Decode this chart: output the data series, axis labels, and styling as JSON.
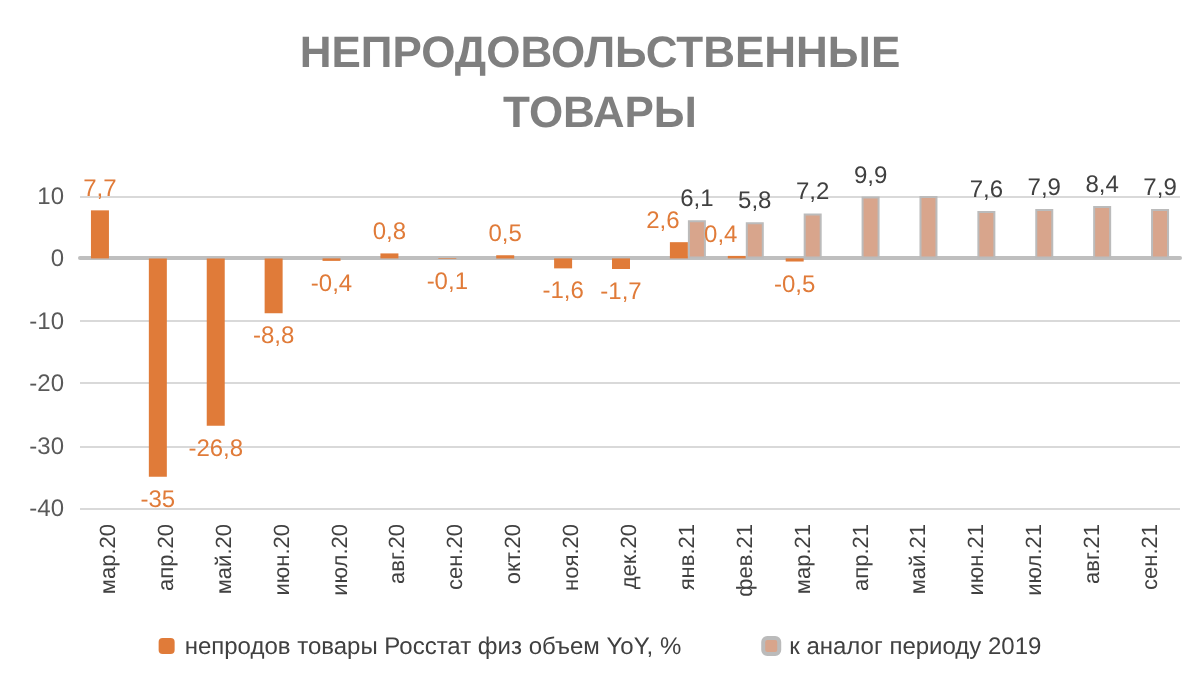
{
  "chart_data": {
    "type": "bar",
    "title": "НЕПРОДОВОЛЬСТВЕННЫЕ ТОВАРЫ",
    "categories": [
      "мар.20",
      "апр.20",
      "май.20",
      "июн.20",
      "июл.20",
      "авг.20",
      "сен.20",
      "окт.20",
      "ноя.20",
      "дек.20",
      "янв.21",
      "фев.21",
      "мар.21",
      "апр.21",
      "май.21",
      "июн.21",
      "июл.21",
      "авг.21",
      "сен.21"
    ],
    "series": [
      {
        "name": "непродов товары Росстат физ объем YoY, %",
        "color": "#e07b39",
        "values": [
          7.7,
          -35,
          -26.8,
          -8.8,
          -0.4,
          0.8,
          -0.1,
          0.5,
          -1.6,
          -1.7,
          2.6,
          0.4,
          -0.5,
          null,
          null,
          null,
          null,
          null,
          null
        ],
        "value_labels": [
          "7,7",
          "-35",
          "-26,8",
          "-8,8",
          "-0,4",
          "0,8",
          "-0,1",
          "0,5",
          "-1,6",
          "-1,7",
          "2,6",
          "0,4",
          "-0,5",
          null,
          null,
          null,
          null,
          null,
          null
        ]
      },
      {
        "name": "к аналог периоду 2019",
        "color": "#d8a58c",
        "values": [
          null,
          null,
          null,
          null,
          null,
          null,
          null,
          null,
          null,
          null,
          6.1,
          5.8,
          7.2,
          9.9,
          10,
          7.6,
          7.9,
          8.4,
          7.9
        ],
        "value_labels": [
          null,
          null,
          null,
          null,
          null,
          null,
          null,
          null,
          null,
          null,
          "6,1",
          "5,8",
          "7,2",
          "9,9",
          null,
          "7,6",
          "7,9",
          "8,4",
          "7,9"
        ]
      }
    ],
    "ylim": [
      -40,
      10
    ],
    "yticks": [
      -40,
      -30,
      -20,
      -10,
      0,
      10
    ],
    "grid": "y",
    "legend": "bottom"
  }
}
